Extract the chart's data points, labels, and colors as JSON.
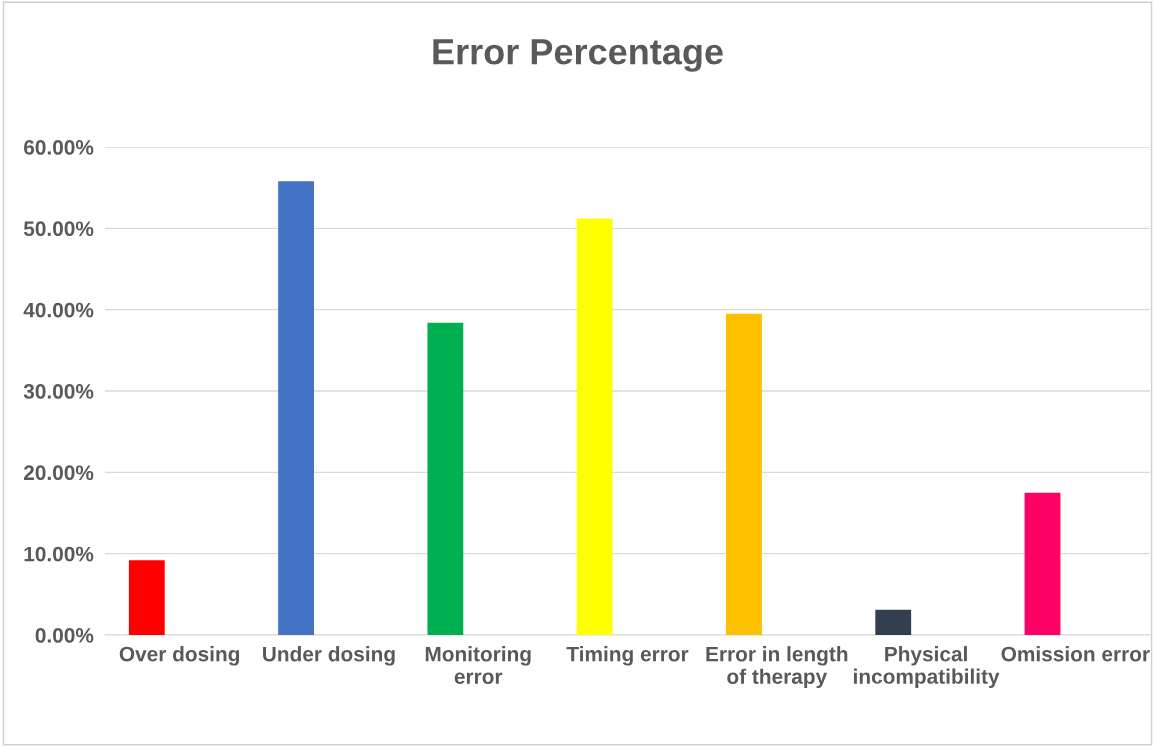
{
  "chart_data": {
    "type": "bar",
    "title": "Error Percentage",
    "categories": [
      "Over dosing",
      "Under dosing",
      "Monitoring\nerror",
      "Timing error",
      "Error in length\nof therapy",
      "Physical\nincompatibility",
      "Omission error"
    ],
    "values": [
      9.2,
      55.8,
      38.4,
      51.2,
      39.5,
      3.1,
      17.5
    ],
    "colors": [
      "#ff0000",
      "#4472c4",
      "#00b050",
      "#ffff00",
      "#ffc000",
      "#333f50",
      "#ff0066"
    ],
    "ylim": [
      0,
      60
    ],
    "yticks": [
      {
        "value": 0,
        "label": "0.00%"
      },
      {
        "value": 10,
        "label": "10.00%"
      },
      {
        "value": 20,
        "label": "20.00%"
      },
      {
        "value": 30,
        "label": "30.00%"
      },
      {
        "value": 40,
        "label": "40.00%"
      },
      {
        "value": 50,
        "label": "50.00%"
      },
      {
        "value": 60,
        "label": "60.00%"
      }
    ],
    "grid": "y",
    "legend": false
  }
}
